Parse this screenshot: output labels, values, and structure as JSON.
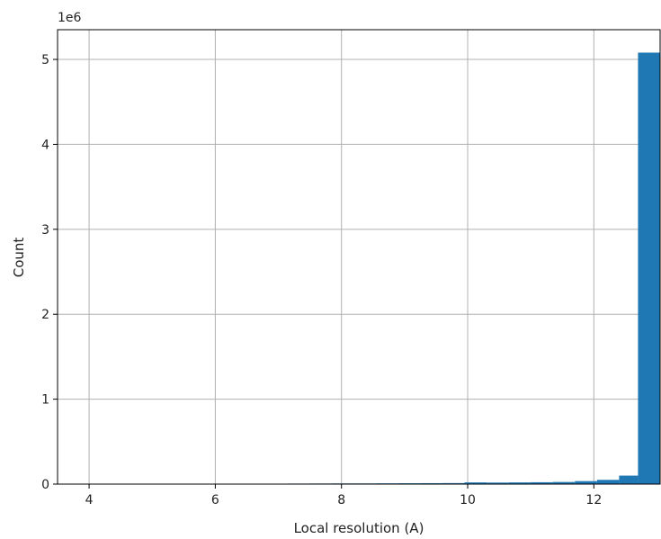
{
  "chart_data": {
    "type": "bar",
    "title": "",
    "xlabel": "Local resolution (A)",
    "ylabel": "Count",
    "y_offset_label": "1e6",
    "xlim": [
      3.5,
      13.05
    ],
    "ylim": [
      0,
      5350000
    ],
    "xticks": [
      4,
      6,
      8,
      10,
      12
    ],
    "xtick_labels": [
      "4",
      "6",
      "8",
      "10",
      "12"
    ],
    "yticks": [
      0,
      1000000,
      2000000,
      3000000,
      4000000,
      5000000
    ],
    "ytick_labels": [
      "0",
      "1",
      "2",
      "3",
      "4",
      "5"
    ],
    "grid": true,
    "bar_color": "#1f77b4",
    "bins": [
      {
        "x0": 3.85,
        "x1": 4.2,
        "value": 0
      },
      {
        "x0": 4.2,
        "x1": 4.55,
        "value": 0
      },
      {
        "x0": 4.55,
        "x1": 4.9,
        "value": 0
      },
      {
        "x0": 4.9,
        "x1": 5.25,
        "value": 0
      },
      {
        "x0": 5.25,
        "x1": 5.6,
        "value": 0
      },
      {
        "x0": 5.6,
        "x1": 5.95,
        "value": 0
      },
      {
        "x0": 5.95,
        "x1": 6.3,
        "value": 0
      },
      {
        "x0": 6.3,
        "x1": 6.65,
        "value": 0
      },
      {
        "x0": 6.8,
        "x1": 7.15,
        "value": 5000
      },
      {
        "x0": 7.15,
        "x1": 7.5,
        "value": 6000
      },
      {
        "x0": 7.5,
        "x1": 7.85,
        "value": 7000
      },
      {
        "x0": 7.85,
        "x1": 8.2,
        "value": 8000
      },
      {
        "x0": 8.2,
        "x1": 8.55,
        "value": 8000
      },
      {
        "x0": 8.55,
        "x1": 8.9,
        "value": 9000
      },
      {
        "x0": 8.9,
        "x1": 9.25,
        "value": 10000
      },
      {
        "x0": 9.25,
        "x1": 9.6,
        "value": 11000
      },
      {
        "x0": 9.6,
        "x1": 9.95,
        "value": 12000
      },
      {
        "x0": 9.95,
        "x1": 10.3,
        "value": 20000
      },
      {
        "x0": 10.3,
        "x1": 10.65,
        "value": 18000
      },
      {
        "x0": 10.65,
        "x1": 11.0,
        "value": 20000
      },
      {
        "x0": 11.0,
        "x1": 11.35,
        "value": 22000
      },
      {
        "x0": 11.35,
        "x1": 11.7,
        "value": 25000
      },
      {
        "x0": 11.7,
        "x1": 12.05,
        "value": 35000
      },
      {
        "x0": 12.05,
        "x1": 12.4,
        "value": 50000
      },
      {
        "x0": 12.4,
        "x1": 12.7,
        "value": 100000
      },
      {
        "x0": 12.7,
        "x1": 13.05,
        "value": 5080000
      }
    ]
  }
}
